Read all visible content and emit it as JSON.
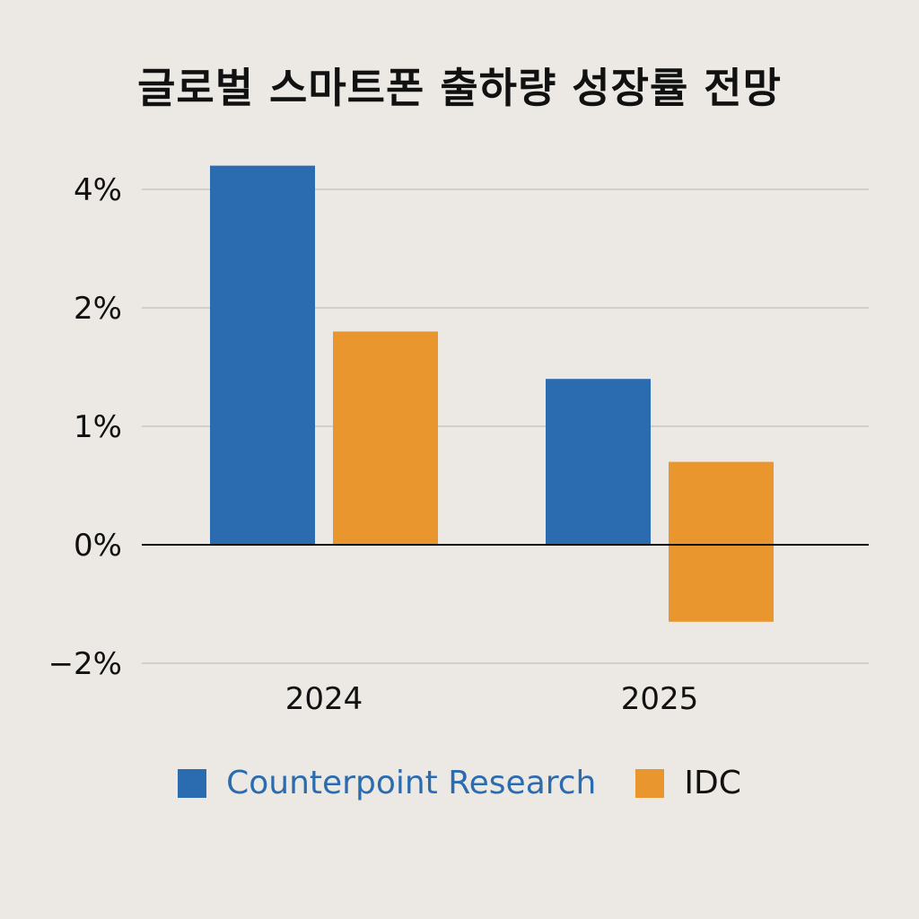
{
  "chart_data": {
    "type": "bar",
    "title": "글로벌 스마트폰 출하량 성장률 전망",
    "xlabel": "",
    "ylabel": "",
    "categories": [
      "2024",
      "2025"
    ],
    "series": [
      {
        "name": "Counterpoint Research",
        "values": [
          4.4,
          1.4
        ],
        "color": "#2b6cb0"
      },
      {
        "name": "IDC",
        "values": [
          1.8,
          0.7
        ],
        "color": "#ea962e"
      }
    ],
    "extra_negative_bar": {
      "series": "IDC",
      "category": "2025",
      "value": -1.3
    },
    "y_ticks": [
      {
        "label": "4%",
        "value": 4
      },
      {
        "label": "2%",
        "value": 2
      },
      {
        "label": "1%",
        "value": 1
      },
      {
        "label": "0%",
        "value": 0
      },
      {
        "label": "−2%",
        "value": -2
      }
    ],
    "legend_position": "bottom",
    "grid": true,
    "colors": {
      "background": "#ece9e4",
      "grid": "#c9c6c1",
      "axis": "#111111",
      "legend_text_counterpoint": "#2b6cb0",
      "legend_text_idc": "#111111"
    }
  }
}
